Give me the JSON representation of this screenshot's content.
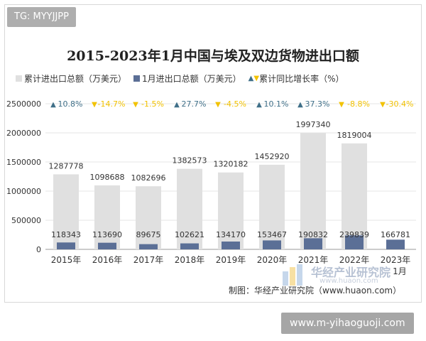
{
  "tag_text": "TG: MYYJJPP",
  "footer_text": "制图：华经产业研究院（www.huaon.com）",
  "watermark_name": "华经产业研究院",
  "watermark_url": "www.huaon.com",
  "site_text": "www.m-yihaoguoji.com",
  "colors": {
    "total_bar": "#e0e0e0",
    "jan_bar": "#5b6f96",
    "up": "#3f6f88",
    "down": "#f2c200"
  },
  "chart_data": {
    "type": "bar",
    "title": "2015-2023年1月中国与埃及双边货物进出口额",
    "legend": {
      "total": "累计进出口总额（万美元）",
      "jan": "1月进出口总额（万美元）",
      "growth": "累计同比增长率（%）"
    },
    "categories": [
      "2015年",
      "2016年",
      "2017年",
      "2018年",
      "2019年",
      "2020年",
      "2021年",
      "2022年",
      "2023年1月"
    ],
    "series": [
      {
        "name": "累计进出口总额（万美元）",
        "values": [
          1287778,
          1098688,
          1082696,
          1382573,
          1320182,
          1452920,
          1997340,
          1819004,
          null
        ]
      },
      {
        "name": "1月进出口总额（万美元）",
        "values": [
          118343,
          113690,
          89675,
          102621,
          134170,
          153467,
          190832,
          239839,
          166781
        ]
      },
      {
        "name": "累计同比增长率（%）",
        "values": [
          10.8,
          -14.7,
          -1.5,
          27.7,
          -4.5,
          10.1,
          37.3,
          -8.8,
          -30.4
        ]
      }
    ],
    "growth_labels": [
      "10.8%",
      "-14.7%",
      "-1.5%",
      "27.7%",
      "-4.5%",
      "10.1%",
      "37.3%",
      "-8.8%",
      "-30.4%"
    ],
    "value_labels_total": [
      "1287778",
      "1098688",
      "1082696",
      "1382573",
      "1320182",
      "1452920",
      "1997340",
      "1819004",
      ""
    ],
    "value_labels_jan": [
      "118343",
      "113690",
      "89675",
      "102621",
      "134170",
      "153467",
      "190832",
      "239839",
      "166781"
    ],
    "ylim": [
      0,
      2500000
    ],
    "yticks": [
      0,
      500000,
      1000000,
      1500000,
      2000000,
      2500000
    ],
    "ytick_labels": [
      "0",
      "500000",
      "1000000",
      "1500000",
      "2000000",
      "2500000"
    ],
    "grid": true,
    "legend_position": "top-left"
  }
}
